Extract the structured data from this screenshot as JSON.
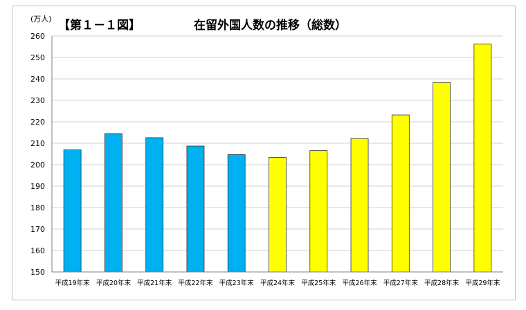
{
  "chart_data": {
    "type": "bar",
    "figure_label": "【第１－１図】",
    "title": "在留外国人数の推移（総数）",
    "unit": "(万人)",
    "categories": [
      "平成19年末",
      "平成20年末",
      "平成21年末",
      "平成22年末",
      "平成23年末",
      "平成24年末",
      "平成25年末",
      "平成26年末",
      "平成27年末",
      "平成28年末",
      "平成29年末"
    ],
    "values": [
      206.9,
      214.5,
      212.6,
      208.7,
      204.7,
      203.4,
      206.6,
      212.2,
      223.2,
      238.3,
      256.2
    ],
    "colors": [
      "#00b0f0",
      "#00b0f0",
      "#00b0f0",
      "#00b0f0",
      "#00b0f0",
      "#ffff00",
      "#ffff00",
      "#ffff00",
      "#ffff00",
      "#ffff00",
      "#ffff00"
    ],
    "ylim": [
      150,
      260
    ],
    "yticks": [
      150,
      160,
      170,
      180,
      190,
      200,
      210,
      220,
      230,
      240,
      250,
      260
    ],
    "grid": true,
    "legend": "none"
  }
}
